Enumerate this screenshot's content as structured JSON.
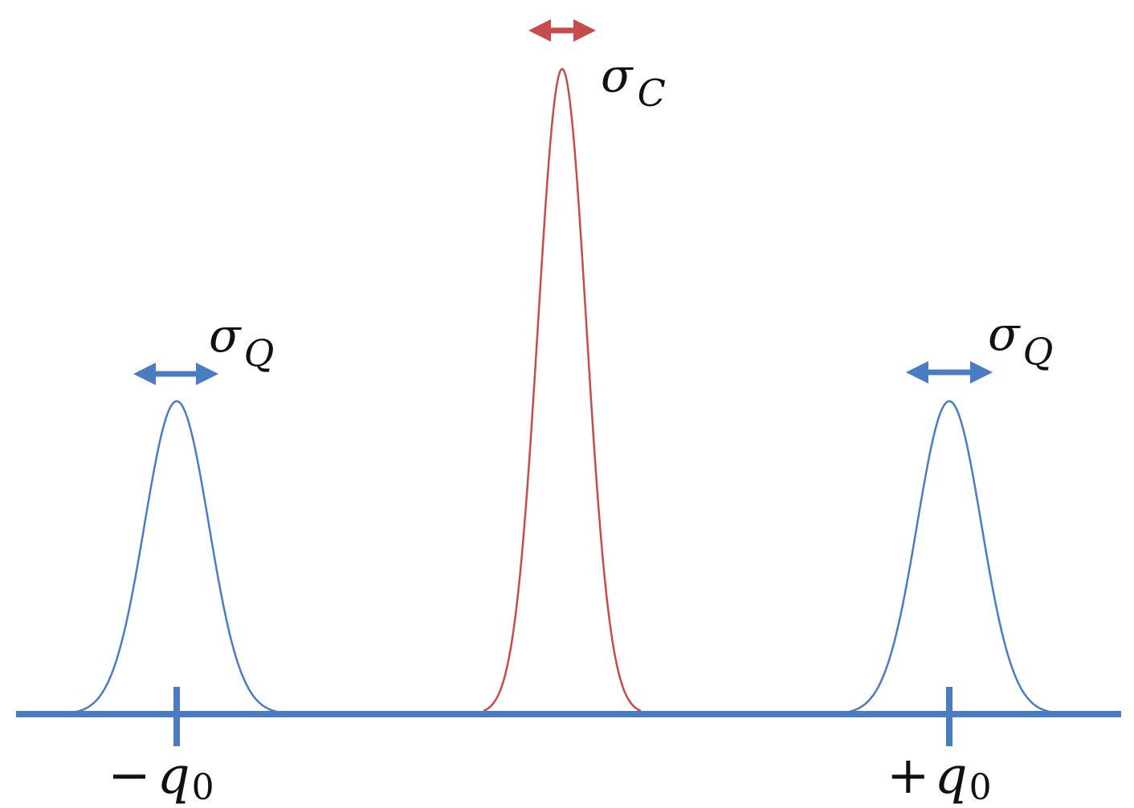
{
  "colors": {
    "axis": "#4a7cc2",
    "quantum_peak": "#4a7cc2",
    "classical_peak": "#c84a4a",
    "text": "#111111"
  },
  "labels": {
    "sigma_c": {
      "symbol": "σ",
      "subscript": "C"
    },
    "sigma_q_left": {
      "symbol": "σ",
      "subscript": "Q"
    },
    "sigma_q_right": {
      "symbol": "σ",
      "subscript": "Q"
    },
    "minus_q0": {
      "sign": "−",
      "symbol": "q",
      "subscript": "0"
    },
    "plus_q0": {
      "sign": "+",
      "symbol": "q",
      "subscript": "0"
    }
  },
  "icons": {
    "width_arrow_left": "double-arrow-icon",
    "width_arrow_center": "double-arrow-icon",
    "width_arrow_right": "double-arrow-icon"
  }
}
